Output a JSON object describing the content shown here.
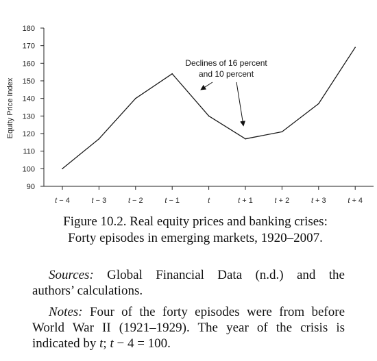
{
  "chart_data": {
    "type": "line",
    "title": "",
    "ylabel": "Equity Price Index",
    "xlabel": "",
    "ylim": [
      90,
      180
    ],
    "yticks": [
      90,
      100,
      110,
      120,
      130,
      140,
      150,
      160,
      170,
      180
    ],
    "categories": [
      "t − 4",
      "t − 3",
      "t − 2",
      "t − 1",
      "t",
      "t + 1",
      "t + 2",
      "t + 3",
      "t + 4"
    ],
    "series": [
      {
        "name": "",
        "values": [
          100,
          117,
          140,
          154,
          130,
          117,
          121,
          137,
          169
        ]
      }
    ],
    "grid": false,
    "annotation": {
      "lines": [
        "Declines of 16 percent",
        "and 10 percent"
      ],
      "arrow_targets": [
        "t",
        "t + 1"
      ]
    }
  },
  "caption": {
    "line1": "Figure 10.2. Real equity prices and banking crises:",
    "line2": "Forty episodes in emerging markets, 1920–2007."
  },
  "sources": {
    "label": "Sources:",
    "line1_rest": " Global Financial Data (n.d.) and the",
    "line2": "authors’ calculations."
  },
  "notes": {
    "label": "Notes:",
    "line1_rest": " Four of the forty episodes were from before",
    "line2": "World War II (1921–1929). The year of the crisis is",
    "line3": "indicated by t; t − 4 = 100."
  }
}
